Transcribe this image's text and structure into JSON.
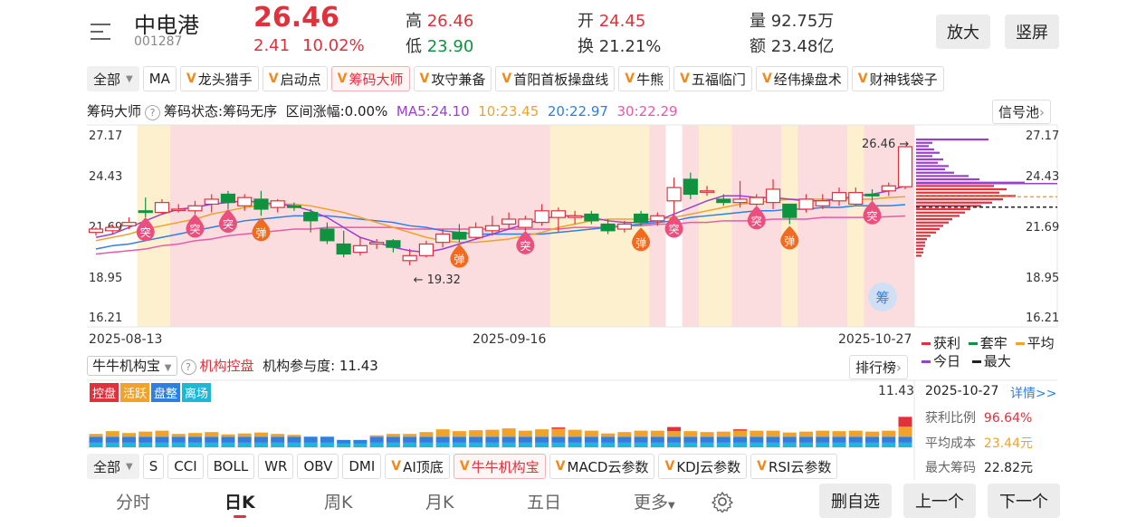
{
  "header": {
    "name": "中电港",
    "code": "001287",
    "price": "26.46",
    "change": "2.41",
    "change_pct": "10.02%",
    "high_label": "高",
    "high": "26.46",
    "low_label": "低",
    "low": "23.90",
    "open_label": "开",
    "open": "24.45",
    "turnover_label": "换",
    "turnover": "21.21%",
    "volume_label": "量",
    "volume": "92.75万",
    "amount_label": "额",
    "amount": "23.48亿",
    "zoom_btn": "放大",
    "portrait_btn": "竖屏"
  },
  "tabs": {
    "all": "全部",
    "items": [
      "MA",
      "龙头猎手",
      "启动点",
      "筹码大师",
      "攻守兼备",
      "首阳首板操盘线",
      "牛熊",
      "五福临门",
      "经伟操盘术",
      "财神钱袋子"
    ]
  },
  "chip_info": {
    "name": "筹码大师",
    "status": "筹码状态:筹码无序",
    "range": "区间涨幅:0.00%",
    "ma5": "MA5:24.10",
    "ma10": "10:23.45",
    "ma20": "20:22.97",
    "ma30": "30:22.29",
    "signal_btn": "信号池"
  },
  "colors": {
    "up": "#e0313c",
    "down": "#10933f",
    "ma5": "#9b3fd1",
    "ma10": "#f0a22a",
    "ma20": "#2f7fe0",
    "ma30": "#e85aa8"
  },
  "chart_data": {
    "type": "candlestick",
    "y_ticks": [
      "27.17",
      "24.43",
      "21.69",
      "18.95",
      "16.21"
    ],
    "ylim": [
      16.21,
      27.17
    ],
    "x_labels": [
      "2025-08-13",
      "2025-09-16",
      "2025-10-27"
    ],
    "annotation_high": "26.46",
    "annotation_low": "19.32",
    "signals": [
      {
        "text": "突",
        "i": 3
      },
      {
        "text": "突",
        "i": 6
      },
      {
        "text": "突",
        "i": 8
      },
      {
        "text": "弹",
        "i": 10
      },
      {
        "text": "弹",
        "i": 22
      },
      {
        "text": "突",
        "i": 26
      },
      {
        "text": "弹",
        "i": 33
      },
      {
        "text": "突",
        "i": 35
      },
      {
        "text": "突",
        "i": 40
      },
      {
        "text": "弹",
        "i": 42
      },
      {
        "text": "突",
        "i": 47
      }
    ],
    "candles": [
      [
        21.3,
        21.5,
        21.1,
        21.6
      ],
      [
        21.4,
        21.6,
        21.2,
        21.8
      ],
      [
        21.7,
        21.9,
        21.5,
        22.2
      ],
      [
        22.6,
        22.5,
        22.2,
        23.4
      ],
      [
        22.5,
        23.1,
        22.4,
        23.3
      ],
      [
        22.7,
        22.7,
        22.5,
        23.0
      ],
      [
        22.6,
        22.9,
        22.4,
        23.2
      ],
      [
        23.0,
        23.3,
        22.5,
        23.6
      ],
      [
        23.6,
        23.1,
        22.7,
        23.8
      ],
      [
        22.9,
        23.4,
        22.6,
        23.6
      ],
      [
        23.3,
        22.7,
        22.3,
        23.8
      ],
      [
        22.8,
        23.2,
        22.5,
        23.3
      ],
      [
        22.9,
        22.8,
        22.6,
        23.1
      ],
      [
        22.5,
        22.0,
        21.3,
        22.7
      ],
      [
        21.5,
        20.8,
        20.6,
        21.9
      ],
      [
        20.6,
        20.0,
        19.8,
        21.4
      ],
      [
        20.1,
        20.5,
        19.9,
        21.0
      ],
      [
        20.6,
        20.7,
        20.3,
        20.9
      ],
      [
        20.8,
        20.4,
        20.1,
        20.9
      ],
      [
        19.6,
        19.9,
        19.32,
        20.3
      ],
      [
        19.9,
        20.6,
        19.8,
        20.8
      ],
      [
        20.7,
        21.2,
        20.4,
        21.5
      ],
      [
        21.3,
        20.9,
        20.7,
        21.8
      ],
      [
        21.0,
        21.6,
        20.9,
        21.9
      ],
      [
        21.4,
        21.7,
        21.1,
        22.3
      ],
      [
        21.8,
        22.1,
        21.5,
        22.5
      ],
      [
        21.6,
        22.1,
        21.4,
        22.3
      ],
      [
        21.9,
        22.6,
        21.7,
        23.0
      ],
      [
        22.2,
        22.6,
        21.3,
        22.8
      ],
      [
        22.2,
        22.3,
        21.8,
        22.6
      ],
      [
        22.4,
        22.0,
        21.8,
        22.6
      ],
      [
        21.8,
        21.4,
        21.2,
        22.1
      ],
      [
        21.5,
        21.8,
        21.3,
        22.0
      ],
      [
        22.4,
        21.9,
        21.7,
        22.6
      ],
      [
        22.0,
        22.3,
        21.7,
        22.5
      ],
      [
        23.2,
        24.0,
        22.4,
        24.6
      ],
      [
        24.5,
        23.6,
        23.3,
        24.9
      ],
      [
        23.8,
        23.8,
        23.5,
        24.1
      ],
      [
        23.3,
        23.1,
        22.9,
        23.6
      ],
      [
        23.1,
        23.3,
        22.8,
        24.4
      ],
      [
        23.0,
        23.4,
        22.9,
        23.6
      ],
      [
        23.1,
        23.9,
        22.7,
        24.5
      ],
      [
        23.0,
        22.2,
        21.8,
        23.0
      ],
      [
        22.7,
        23.3,
        22.5,
        23.6
      ],
      [
        22.9,
        23.2,
        22.7,
        23.6
      ],
      [
        23.2,
        23.7,
        22.9,
        24.0
      ],
      [
        23.0,
        23.7,
        22.9,
        24.0
      ],
      [
        23.6,
        23.5,
        23.2,
        23.9
      ],
      [
        23.8,
        24.1,
        23.5,
        24.3
      ],
      [
        24.05,
        26.46,
        23.9,
        26.46
      ]
    ],
    "ma5": [
      21.0,
      21.2,
      21.6,
      22.0,
      22.4,
      22.7,
      22.8,
      23.0,
      23.1,
      23.2,
      23.1,
      23.0,
      22.9,
      22.6,
      22.2,
      21.6,
      21.0,
      20.7,
      20.4,
      20.2,
      20.1,
      20.3,
      20.6,
      20.9,
      21.2,
      21.5,
      21.8,
      22.1,
      22.3,
      22.3,
      22.2,
      22.0,
      21.9,
      21.9,
      22.0,
      22.4,
      22.8,
      23.2,
      23.5,
      23.5,
      23.4,
      23.4,
      23.3,
      23.2,
      23.2,
      23.3,
      23.5,
      23.6,
      23.8,
      24.1
    ],
    "ma10": [
      20.8,
      21.0,
      21.2,
      21.5,
      21.7,
      21.9,
      22.1,
      22.4,
      22.6,
      22.8,
      22.9,
      23.0,
      23.0,
      22.9,
      22.7,
      22.5,
      22.2,
      21.9,
      21.6,
      21.3,
      21.0,
      20.8,
      20.7,
      20.7,
      20.8,
      20.9,
      21.1,
      21.3,
      21.6,
      21.8,
      22.0,
      22.1,
      22.1,
      22.1,
      22.1,
      22.2,
      22.4,
      22.6,
      22.8,
      23.0,
      23.1,
      23.2,
      23.3,
      23.3,
      23.3,
      23.3,
      23.3,
      23.3,
      23.4,
      23.45
    ],
    "ma20": [
      20.3,
      20.5,
      20.6,
      20.8,
      21.0,
      21.2,
      21.4,
      21.6,
      21.8,
      22.0,
      22.1,
      22.2,
      22.3,
      22.3,
      22.3,
      22.2,
      22.1,
      22.0,
      21.9,
      21.7,
      21.6,
      21.4,
      21.3,
      21.2,
      21.2,
      21.2,
      21.2,
      21.2,
      21.3,
      21.4,
      21.5,
      21.6,
      21.7,
      21.8,
      21.9,
      22.0,
      22.2,
      22.3,
      22.4,
      22.5,
      22.6,
      22.6,
      22.7,
      22.7,
      22.8,
      22.8,
      22.9,
      22.9,
      22.9,
      22.97
    ],
    "ma30": [
      20.0,
      20.1,
      20.2,
      20.3,
      20.5,
      20.6,
      20.8,
      20.9,
      21.1,
      21.2,
      21.3,
      21.4,
      21.5,
      21.5,
      21.6,
      21.6,
      21.6,
      21.6,
      21.6,
      21.5,
      21.5,
      21.5,
      21.5,
      21.5,
      21.5,
      21.5,
      21.5,
      21.5,
      21.5,
      21.6,
      21.6,
      21.6,
      21.7,
      21.7,
      21.8,
      21.8,
      21.9,
      21.9,
      22.0,
      22.0,
      22.0,
      22.1,
      22.1,
      22.1,
      22.2,
      22.2,
      22.2,
      22.2,
      22.25,
      22.29
    ],
    "bg_bands": [
      "p",
      "p",
      "y",
      "y",
      "y",
      "p",
      "p",
      "p",
      "p",
      "p",
      "p",
      "p",
      "p",
      "p",
      "p",
      "p",
      "p",
      "p",
      "p",
      "p",
      "p",
      "p",
      "p",
      "p",
      "p",
      "p",
      "p",
      "p",
      "y",
      "y",
      "y",
      "y",
      "y",
      "y",
      "p",
      "w",
      "p",
      "y",
      "y",
      "p",
      "p",
      "p",
      "y",
      "p",
      "p",
      "p",
      "y",
      "p",
      "p",
      "p"
    ]
  },
  "chip_legend": {
    "profit": "获利",
    "trapped": "套牢",
    "avg": "平均",
    "today": "今日",
    "max": "最大"
  },
  "chip_dist_ticks": [
    "27.17",
    "24.43",
    "21.69",
    "18.95",
    "16.21"
  ],
  "chip_dist": [
    {
      "p": 26.9,
      "w": 80,
      "c": "purple"
    },
    {
      "p": 26.7,
      "w": 18,
      "c": "purple"
    },
    {
      "p": 26.5,
      "w": 14,
      "c": "purple"
    },
    {
      "p": 26.3,
      "w": 20,
      "c": "purple"
    },
    {
      "p": 26.1,
      "w": 26,
      "c": "purple"
    },
    {
      "p": 25.9,
      "w": 18,
      "c": "purple"
    },
    {
      "p": 25.7,
      "w": 30,
      "c": "purple"
    },
    {
      "p": 25.5,
      "w": 24,
      "c": "purple"
    },
    {
      "p": 25.3,
      "w": 36,
      "c": "purple"
    },
    {
      "p": 25.1,
      "w": 32,
      "c": "purple"
    },
    {
      "p": 24.9,
      "w": 42,
      "c": "purple"
    },
    {
      "p": 24.7,
      "w": 58,
      "c": "purple"
    },
    {
      "p": 24.5,
      "w": 70,
      "c": "purple"
    },
    {
      "p": 24.3,
      "w": 120,
      "c": "purple"
    },
    {
      "p": 24.1,
      "w": 86,
      "c": "red"
    },
    {
      "p": 23.9,
      "w": 100,
      "c": "red"
    },
    {
      "p": 23.7,
      "w": 92,
      "c": "red"
    },
    {
      "p": 23.5,
      "w": 110,
      "c": "red"
    },
    {
      "p": 23.3,
      "w": 96,
      "c": "red"
    },
    {
      "p": 23.1,
      "w": 84,
      "c": "red"
    },
    {
      "p": 22.9,
      "w": 72,
      "c": "red"
    },
    {
      "p": 22.7,
      "w": 60,
      "c": "red"
    },
    {
      "p": 22.5,
      "w": 54,
      "c": "red"
    },
    {
      "p": 22.3,
      "w": 48,
      "c": "red"
    },
    {
      "p": 22.1,
      "w": 40,
      "c": "red"
    },
    {
      "p": 21.9,
      "w": 36,
      "c": "red"
    },
    {
      "p": 21.7,
      "w": 30,
      "c": "red"
    },
    {
      "p": 21.5,
      "w": 26,
      "c": "red"
    },
    {
      "p": 21.3,
      "w": 22,
      "c": "red"
    },
    {
      "p": 21.1,
      "w": 16,
      "c": "red"
    },
    {
      "p": 20.9,
      "w": 12,
      "c": "red"
    },
    {
      "p": 20.7,
      "w": 10,
      "c": "red"
    },
    {
      "p": 20.5,
      "w": 10,
      "c": "red"
    },
    {
      "p": 20.3,
      "w": 8,
      "c": "red"
    },
    {
      "p": 20.1,
      "w": 8,
      "c": "red"
    },
    {
      "p": 19.9,
      "w": 6,
      "c": "red"
    }
  ],
  "sub_chart": {
    "selector": "牛牛机构宝",
    "label": "机构控盘",
    "participation": "机构参与度: 11.43",
    "rank_btn": "排行榜",
    "max_label": "11.43",
    "badges": [
      {
        "text": "控盘",
        "color": "#e0313c"
      },
      {
        "text": "活跃",
        "color": "#f0a22a"
      },
      {
        "text": "盘整",
        "color": "#2f7fe0"
      },
      {
        "text": "离场",
        "color": "#1fb6d8"
      }
    ],
    "control": [
      0,
      0,
      0,
      0,
      0,
      0,
      0,
      0,
      0,
      0,
      0,
      0,
      0,
      0,
      0,
      0,
      0,
      0,
      0,
      0,
      0,
      0,
      0,
      0,
      0,
      0,
      0,
      0,
      0.3,
      0,
      0,
      0,
      0,
      0,
      0,
      0.9,
      0,
      0,
      0,
      0.3,
      0,
      0,
      0,
      0,
      0,
      0,
      0,
      0,
      0,
      2.1
    ],
    "active": [
      0.6,
      1.2,
      0.8,
      1.1,
      1.3,
      0.6,
      0.8,
      1.0,
      0.5,
      0.7,
      0.9,
      0.6,
      0.4,
      0,
      0,
      0,
      0,
      0.3,
      0.6,
      0.6,
      1.0,
      1.6,
      1.2,
      1.4,
      1.5,
      1.8,
      1.3,
      1.6,
      1.7,
      1.5,
      1.3,
      0.7,
      1.0,
      1.3,
      1.3,
      1.2,
      1.2,
      1.0,
      1.1,
      1.3,
      1.3,
      1.3,
      0.9,
      1.1,
      1.3,
      1.2,
      1.3,
      1.1,
      1.3,
      2.2
    ],
    "consolidate": [
      1.3,
      1.3,
      1.3,
      1.3,
      1.3,
      1.3,
      1.3,
      1.3,
      1.3,
      1.3,
      1.3,
      1.3,
      1.3,
      1.3,
      1.3,
      0.8,
      0.8,
      1.3,
      1.3,
      1.3,
      1.3,
      1.3,
      1.3,
      1.3,
      1.3,
      1.3,
      1.3,
      1.3,
      1.3,
      1.3,
      1.3,
      1.3,
      1.3,
      1.3,
      1.3,
      1.3,
      1.3,
      1.3,
      1.3,
      1.3,
      1.3,
      1.3,
      1.3,
      1.3,
      1.3,
      1.3,
      1.3,
      1.3,
      1.3,
      1.3
    ],
    "exit": [
      1.0,
      1.0,
      1.0,
      1.0,
      1.0,
      1.0,
      1.0,
      1.0,
      1.0,
      1.0,
      1.0,
      1.0,
      1.0,
      1.0,
      1.0,
      0.8,
      0.8,
      1.0,
      1.0,
      1.0,
      1.0,
      1.0,
      1.0,
      1.0,
      1.0,
      1.0,
      1.0,
      1.0,
      1.0,
      1.0,
      1.0,
      1.0,
      1.0,
      1.0,
      1.0,
      1.0,
      1.0,
      1.0,
      1.0,
      1.0,
      1.0,
      1.0,
      1.0,
      1.0,
      1.0,
      1.0,
      1.0,
      1.0,
      1.0,
      1.0
    ]
  },
  "detail_panel": {
    "date": "2025-10-27",
    "link": "详情>>",
    "profit_label": "获利比例",
    "profit": "96.64%",
    "avg_cost_label": "平均成本",
    "avg_cost": "23.44元",
    "max_chip_label": "最大筹码",
    "max_chip": "22.82元"
  },
  "tabs2": {
    "all": "全部",
    "items": [
      "S",
      "CCI",
      "BOLL",
      "WR",
      "OBV",
      "DMI",
      "AI顶底",
      "牛牛机构宝",
      "MACD云参数",
      "KDJ云参数",
      "RSI云参数"
    ]
  },
  "bottom_nav": {
    "items": [
      "分时",
      "日K",
      "周K",
      "月K",
      "五日",
      "更多"
    ],
    "delete_btn": "删自选",
    "prev_btn": "上一个",
    "next_btn": "下一个"
  }
}
